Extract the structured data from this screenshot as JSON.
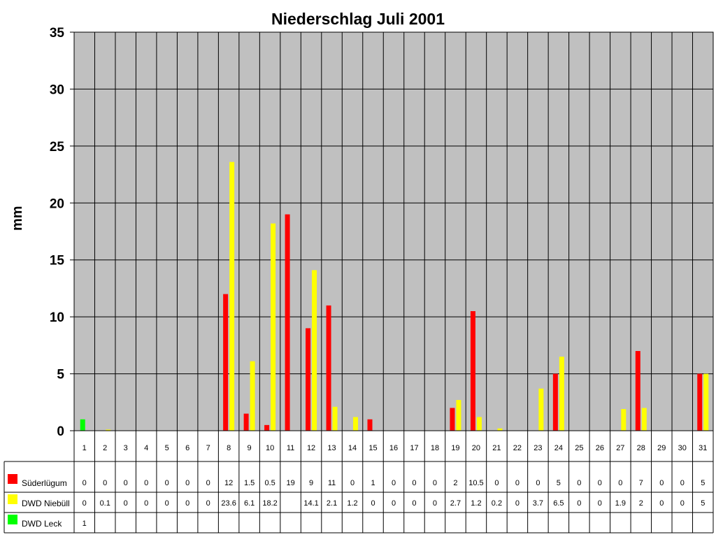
{
  "chart_data": {
    "type": "bar",
    "title": "Niederschlag Juli 2001",
    "xlabel": "",
    "ylabel": "mm",
    "ylim": [
      0,
      35
    ],
    "yticks": [
      "0",
      "5",
      "10",
      "15",
      "20",
      "25",
      "30",
      "35"
    ],
    "grid": true,
    "legend": "data table below plot",
    "categories": [
      "1",
      "2",
      "3",
      "4",
      "5",
      "6",
      "7",
      "8",
      "9",
      "10",
      "11",
      "12",
      "13",
      "14",
      "15",
      "16",
      "17",
      "18",
      "19",
      "20",
      "21",
      "22",
      "23",
      "24",
      "25",
      "26",
      "27",
      "28",
      "29",
      "30",
      "31"
    ],
    "series": [
      {
        "name": "Süderlügum",
        "color": "#ff0000",
        "values": [
          0,
          0,
          0,
          0,
          0,
          0,
          0,
          12,
          1.5,
          0.5,
          19,
          9,
          11,
          0,
          1,
          0,
          0,
          0,
          2,
          10.5,
          0,
          0,
          0,
          5,
          0,
          0,
          0,
          7,
          0,
          0,
          5
        ],
        "labels": [
          "0",
          "0",
          "0",
          "0",
          "0",
          "0",
          "0",
          "12",
          "1.5",
          "0.5",
          "19",
          "9",
          "11",
          "0",
          "1",
          "0",
          "0",
          "0",
          "2",
          "10.5",
          "0",
          "0",
          "0",
          "5",
          "0",
          "0",
          "0",
          "7",
          "0",
          "0",
          "5"
        ]
      },
      {
        "name": "DWD Niebüll",
        "color": "#ffff00",
        "values": [
          0,
          0.1,
          0,
          0,
          0,
          0,
          0,
          23.6,
          6.1,
          18.2,
          null,
          14.1,
          2.1,
          1.2,
          0,
          0,
          0,
          0,
          2.7,
          1.2,
          0.2,
          0,
          3.7,
          6.5,
          0,
          0,
          1.9,
          2,
          0,
          0,
          5
        ],
        "labels": [
          "0",
          "0.1",
          "0",
          "0",
          "0",
          "0",
          "0",
          "23.6",
          "6.1",
          "18.2",
          "",
          "14.1",
          "2.1",
          "1.2",
          "0",
          "0",
          "0",
          "0",
          "2.7",
          "1.2",
          "0.2",
          "0",
          "3.7",
          "6.5",
          "0",
          "0",
          "1.9",
          "2",
          "0",
          "0",
          "5"
        ]
      },
      {
        "name": "DWD Leck",
        "color": "#00ff00",
        "values": [
          1,
          null,
          null,
          null,
          null,
          null,
          null,
          null,
          null,
          null,
          null,
          null,
          null,
          null,
          null,
          null,
          null,
          null,
          null,
          null,
          null,
          null,
          null,
          null,
          null,
          null,
          null,
          null,
          null,
          null,
          null
        ],
        "labels": [
          "1",
          "",
          "",
          "",
          "",
          "",
          "",
          "",
          "",
          "",
          "",
          "",
          "",
          "",
          "",
          "",
          "",
          "",
          "",
          "",
          "",
          "",
          "",
          "",
          "",
          "",
          "",
          "",
          "",
          "",
          ""
        ]
      }
    ],
    "colors": {
      "plot_background": "#c0c0c0",
      "gridline": "#000000"
    }
  }
}
